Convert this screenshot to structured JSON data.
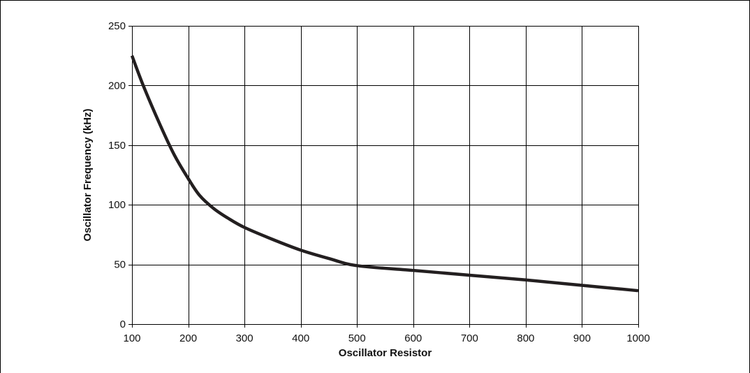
{
  "chart_data": {
    "type": "line",
    "title": "",
    "xlabel": "Oscillator Resistor",
    "ylabel": "Oscillator Frequency (kHz)",
    "xlim": [
      100,
      1000
    ],
    "ylim": [
      0,
      250
    ],
    "x_ticks": [
      100,
      200,
      300,
      400,
      500,
      600,
      700,
      800,
      900,
      1000
    ],
    "y_ticks": [
      0,
      50,
      100,
      150,
      200,
      250
    ],
    "x_tick_labels": [
      "100",
      "200",
      "300",
      "400",
      "500",
      "600",
      "700",
      "800",
      "900",
      "1000"
    ],
    "y_tick_labels": [
      "0",
      "50",
      "100",
      "150",
      "200",
      "250"
    ],
    "grid": true,
    "legend": "none",
    "series": [
      {
        "color": "#231f20",
        "x": [
          100,
          120,
          150,
          175,
          200,
          220,
          245,
          270,
          300,
          350,
          400,
          450,
          500,
          600,
          700,
          800,
          900,
          1000
        ],
        "y": [
          225,
          200,
          167,
          142,
          122,
          108,
          97,
          89,
          81,
          71,
          62,
          55,
          49,
          45,
          41,
          37,
          32.5,
          28
        ]
      }
    ]
  }
}
